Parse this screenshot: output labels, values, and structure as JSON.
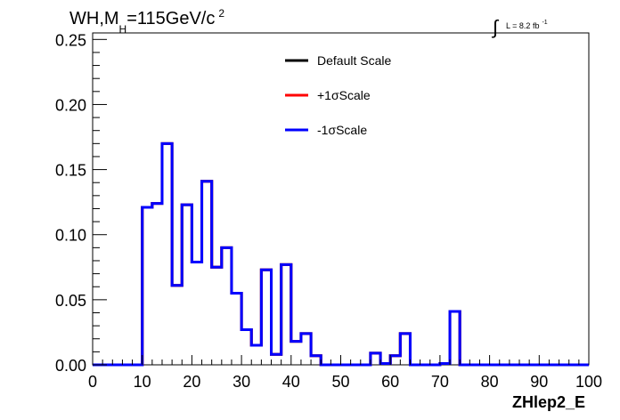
{
  "chart_data": {
    "type": "line",
    "title_parts": {
      "main": "WH,M",
      "sub": "H",
      "rest": "=115GeV/c",
      "sup": "2"
    },
    "lumi_label": {
      "integral": "∫",
      "text": "L = 8.2 fb",
      "sup": "-1"
    },
    "xlabel": "ZHlep2_E",
    "ylabel": "",
    "xlim": [
      0,
      100
    ],
    "ylim": [
      0,
      0.255
    ],
    "x_ticks": [
      "0",
      "10",
      "20",
      "30",
      "40",
      "50",
      "60",
      "70",
      "80",
      "90",
      "100"
    ],
    "y_ticks": [
      "0.00",
      "0.05",
      "0.10",
      "0.15",
      "0.20",
      "0.25"
    ],
    "bin_width": 2,
    "bin_edges_start": 0,
    "series": [
      {
        "name": "Default Scale",
        "color": "#000000",
        "values": [
          0,
          0,
          0,
          0,
          0,
          0.121,
          0.124,
          0.17,
          0.061,
          0.123,
          0.079,
          0.141,
          0.075,
          0.09,
          0.055,
          0.027,
          0.015,
          0.073,
          0.008,
          0.077,
          0.018,
          0.024,
          0.007,
          0,
          0,
          0,
          0,
          0,
          0.009,
          0.001,
          0.007,
          0.024,
          0,
          0,
          0,
          0.001,
          0.041,
          0,
          0,
          0,
          0,
          0,
          0,
          0,
          0,
          0,
          0,
          0,
          0,
          0
        ]
      },
      {
        "name": "+1σScale",
        "color": "#ff0000",
        "values": [
          0,
          0,
          0,
          0,
          0,
          0.121,
          0.124,
          0.17,
          0.061,
          0.123,
          0.079,
          0.141,
          0.075,
          0.09,
          0.055,
          0.027,
          0.015,
          0.073,
          0.008,
          0.077,
          0.018,
          0.024,
          0.007,
          0,
          0,
          0,
          0,
          0,
          0.009,
          0.001,
          0.007,
          0.024,
          0,
          0,
          0,
          0.001,
          0.041,
          0,
          0,
          0,
          0,
          0,
          0,
          0,
          0,
          0,
          0,
          0,
          0,
          0
        ]
      },
      {
        "name": "-1σScale",
        "color": "#0000ff",
        "values": [
          0,
          0,
          0,
          0,
          0,
          0.121,
          0.124,
          0.17,
          0.061,
          0.123,
          0.079,
          0.141,
          0.075,
          0.09,
          0.055,
          0.027,
          0.015,
          0.073,
          0.008,
          0.077,
          0.018,
          0.024,
          0.007,
          0,
          0,
          0,
          0,
          0,
          0.009,
          0.001,
          0.007,
          0.024,
          0,
          0,
          0,
          0.001,
          0.041,
          0,
          0,
          0,
          0,
          0,
          0,
          0,
          0,
          0,
          0,
          0,
          0,
          0
        ]
      }
    ],
    "legend_position": "top-center",
    "grid": false
  }
}
